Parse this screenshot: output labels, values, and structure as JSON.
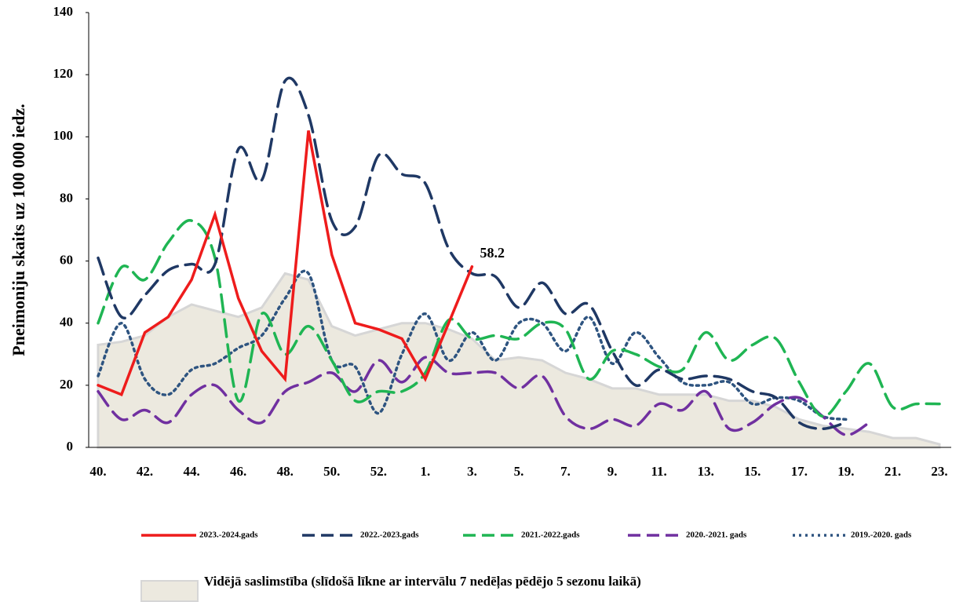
{
  "chart_data": {
    "type": "line",
    "y_label": "Pneimoniju skaits uz 100 000 iedz.",
    "categories": [
      "40.",
      null,
      "42.",
      null,
      "44.",
      null,
      "46.",
      null,
      "48.",
      null,
      "50.",
      null,
      "52.",
      null,
      "1.",
      null,
      "3.",
      null,
      "5.",
      null,
      "7.",
      null,
      "9.",
      null,
      "11.",
      null,
      "13.",
      null,
      "15.",
      null,
      "17.",
      null,
      "19.",
      null,
      "21.",
      null,
      "23."
    ],
    "ylim": [
      0,
      140
    ],
    "yticks": [
      0,
      20,
      40,
      60,
      80,
      100,
      120,
      140
    ],
    "grid": false,
    "series": [
      {
        "name": "2023.-2024.gads",
        "color": "#ee1c1c",
        "line_style": "solid",
        "values": [
          20,
          17,
          37,
          42,
          54,
          75,
          48,
          31,
          22,
          102,
          62,
          40,
          38,
          35,
          22,
          40,
          58.2,
          null,
          null,
          null,
          null,
          null,
          null,
          null,
          null,
          null,
          null,
          null,
          null,
          null,
          null,
          null,
          null,
          null,
          null,
          null,
          null
        ]
      },
      {
        "name": "2022.-2023.gads",
        "color": "#1f3864",
        "line_style": "dashed",
        "values": [
          61,
          42,
          49,
          57,
          59,
          59,
          96,
          86,
          118,
          107,
          73,
          71,
          94,
          88,
          85,
          64,
          56,
          55,
          45,
          53,
          43,
          46,
          31,
          20,
          25,
          22,
          23,
          22,
          18,
          16,
          8,
          6,
          8,
          null,
          null,
          null,
          null
        ]
      },
      {
        "name": "2021.-2022.gads",
        "color": "#1fb553",
        "line_style": "dashed",
        "values": [
          40,
          58,
          54,
          66,
          73,
          61,
          15,
          43,
          30,
          39,
          28,
          15,
          18,
          18,
          24,
          41,
          35,
          36,
          35,
          40,
          38,
          22,
          31,
          30,
          26,
          25,
          37,
          28,
          33,
          35,
          21,
          10,
          18,
          27,
          13,
          14,
          14
        ]
      },
      {
        "name": "2020.-2021. gads",
        "color": "#7030a0",
        "line_style": "dashed",
        "values": [
          18,
          9,
          12,
          8,
          17,
          20,
          12,
          8,
          18,
          21,
          24,
          18,
          28,
          21,
          29,
          24,
          24,
          24,
          19,
          23,
          10,
          6,
          9,
          7,
          14,
          12,
          18,
          6,
          8,
          14,
          16,
          10,
          4,
          8,
          null,
          null,
          null
        ]
      },
      {
        "name": "2019.-2020. gads",
        "color": "#2e5480",
        "line_style": "dotted",
        "values": [
          23,
          40,
          22,
          17,
          25,
          27,
          32,
          36,
          48,
          56,
          28,
          26,
          11,
          30,
          43,
          28,
          37,
          28,
          40,
          40,
          31,
          42,
          27,
          37,
          29,
          21,
          20,
          21,
          14,
          16,
          15,
          10,
          9,
          null,
          null,
          null,
          null
        ]
      }
    ],
    "area": {
      "name": "Vidējā saslimstība (slīdošā līkne ar intervālu 7 nedēļas pēdējo 5 sezonu laikā)",
      "color": "#ece9df",
      "values": [
        33,
        34,
        36,
        42,
        46,
        44,
        42,
        45,
        56,
        54,
        39,
        36,
        38,
        40,
        40,
        38,
        35,
        28,
        29,
        28,
        24,
        22,
        19,
        19,
        17,
        17,
        17,
        15,
        15,
        13,
        9,
        7,
        6,
        5,
        3,
        3,
        1
      ]
    }
  }
}
